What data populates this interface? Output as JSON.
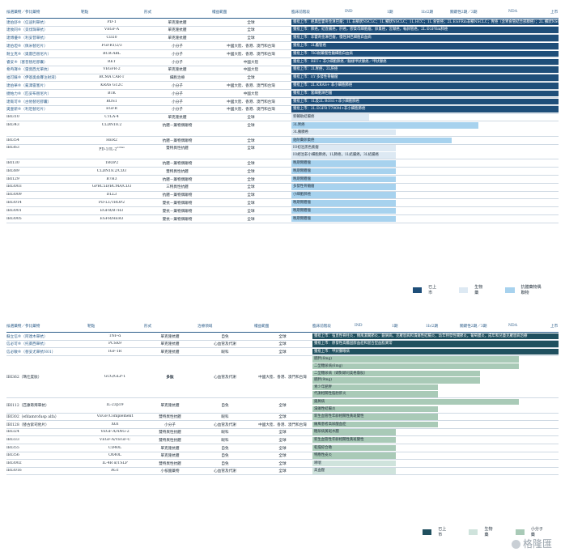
{
  "table1": {
    "headers": [
      "候選藥物／參比藥物",
      "靶點",
      "形式",
      "權益範圍",
      "臨床前階段",
      "IND",
      "1期",
      "1b/2期",
      "關鍵性2期／3期",
      "NDA",
      "上市"
    ],
    "rows": [
      {
        "name": "達伯舒®（信迪利單抗）",
        "target": "PD-1",
        "form": "單克隆抗體",
        "scope": "全球",
        "bar": "dark",
        "label": "獲批上市：經典型霍奇金淋巴瘤；1L 非鱗狀NSCLC；1L 鱗狀NSCLC；1L HCC；1L 食管癌；2L EGFRm非鱗NSCLC；胃癌（含胃食管結合部腺癌）；2L 鱗狀NSCLC",
        "partner": true
      },
      {
        "name": "達攸同®（貝伐珠單抗）",
        "target": "VEGF-A",
        "form": "單克隆抗體",
        "scope": "全球",
        "bar": "dark",
        "label": "獲批上市：肺癌，結直腸癌，肝癌，膠質母細胞瘤，卵巢癌，宮頸癌，輸卵管癌，2L EGFRm肺癌",
        "partner": true
      },
      {
        "name": "達博優®（利妥昔單抗）",
        "target": "CD20",
        "form": "單克隆抗體",
        "scope": "全球",
        "bar": "dark",
        "label": "獲批上市：非霍奇金淋巴瘤，慢性淋巴細胞白血病",
        "partner": true
      },
      {
        "name": "達伯坦®（佩米替尼片）",
        "target": "FGFR1/2/3",
        "form": "小分子",
        "scope": "中國大陸、香港、澳門和台灣",
        "bar": "dark",
        "label": "獲批上市：2L膽管癌",
        "partner": true
      },
      {
        "name": "耐立克®（奧雷巴替尼片）",
        "target": "BCR-ABL",
        "form": "小分子",
        "scope": "中國大陸、香港、澳門和台灣",
        "bar": "dark",
        "label": "獲批上市：TKI耐藥慢性髓細胞白血病",
        "partner": true
      },
      {
        "name": "睿妥®（塞普替尼膠囊）",
        "target": "RET",
        "form": "小分子",
        "scope": "中國大陸",
        "bar": "dark",
        "label": "獲批上市：RET+ 非小細胞肺癌／髓樣甲狀腺癌／甲狀腺癌",
        "partner": true
      },
      {
        "name": "希冉擇®（雷莫西尤單抗）",
        "target": "VEGFR-2",
        "form": "單克隆抗體",
        "scope": "中國大陸",
        "bar": "dark",
        "label": "獲批上市：2L胃癌，2L肝癌",
        "partner": true
      },
      {
        "name": "福可蘇®（伊基奧侖賽注射液）",
        "target": "BCMA CAR-T",
        "form": "細胞治療",
        "scope": "全球",
        "bar": "dark",
        "label": "獲批上市：r/r 多發性骨髓瘤",
        "partner": true
      },
      {
        "name": "達伯華®（氟澤雷塞片）",
        "target": "KRAS G12C",
        "form": "小分子",
        "scope": "中國大陸、香港、澳門和台灣",
        "bar": "dark",
        "label": "獲批上市：2L KRAS+ 非小細胞肺癌",
        "partner": true
      },
      {
        "name": "捷帕力®（匹妥布替尼片）",
        "target": "BTK",
        "form": "小分子",
        "scope": "中國大陸",
        "bar": "dark",
        "label": "獲批上市：套細胞淋巴瘤",
        "partner": true
      },
      {
        "name": "達衛可®（古他替尼膠囊）",
        "target": "ROS1",
        "form": "小分子",
        "scope": "中國大陸、香港、澳門和台灣",
        "bar": "dark",
        "label": "獲批上市：1L及2L ROS1+非小細胞肺癌",
        "partner": true
      },
      {
        "name": "奧壹新®（利厄替尼片）",
        "target": "EGFR",
        "form": "小分子",
        "scope": "中國大陸、香港、澳門和台灣",
        "bar": "dark",
        "label": "獲批上市：2L EGFR T790M+非小細胞肺癌",
        "partner": true
      },
      {
        "name": "IBI310",
        "target": "CTLA-4",
        "form": "單克隆抗體",
        "scope": "全球",
        "bar": "light",
        "label": "新輔助結腸癌",
        "width": 0.29
      },
      {
        "name": "IBI343",
        "target": "CLDN18.2",
        "form": "抗體－藥物偶聯物",
        "scope": "全球",
        "bar2": [
          {
            "cls": "mid",
            "label": "3L胃癌",
            "width": 0.7
          },
          {
            "cls": "light",
            "label": "3L胰腺癌",
            "width": 0.39
          }
        ]
      },
      {
        "name": "IBI354",
        "target": "HER2",
        "form": "抗體－藥物偶聯物",
        "scope": "全球",
        "bar": "mid",
        "label": "鉑耐藥卵巢癌",
        "width": 0.6
      },
      {
        "name": "IBI363",
        "target": "PD-1/IL-2",
        "targetSup": "α-bias",
        "form": "雙特異性抗體",
        "scope": "全球",
        "bar3": [
          {
            "cls": "light",
            "label": "IO初治黑色素瘤",
            "width": 0.39
          },
          {
            "cls": "light",
            "label": "IO經治非小細胞肺癌，1L肺癌，1L結腸癌，3L結腸癌",
            "width": 0.39
          }
        ]
      },
      {
        "name": "IBI130",
        "target": "TROP2",
        "form": "抗體－藥物偶聯物",
        "scope": "全球",
        "bar": "mid",
        "label": "晚期實體瘤",
        "width": 0.39
      },
      {
        "name": "IBI389",
        "target": "CLDN18.2/CD3",
        "form": "雙特異性抗體",
        "scope": "全球",
        "bar": "mid",
        "label": "晚期實體瘤",
        "width": 0.39
      },
      {
        "name": "IBI129",
        "target": "B7H3",
        "form": "抗體－藥物偶聯物",
        "scope": "全球",
        "bar": "mid",
        "label": "晚期實體瘤",
        "width": 0.39
      },
      {
        "name": "IBI3003",
        "target": "GPRC5D/BCMA/CD3",
        "form": "三特異性抗體",
        "scope": "全球",
        "bar": "mid",
        "label": "多發性骨髓瘤",
        "width": 0.39
      },
      {
        "name": "IBI3009",
        "target": "DLL3",
        "form": "抗體－藥物偶聯物",
        "scope": "全球",
        "bar": "mid",
        "label": "小細胞肺癌",
        "width": 0.39
      },
      {
        "name": "IBI3014",
        "target": "PD-L1/TROP2",
        "form": "雙抗－藥物偶聯物",
        "scope": "全球",
        "bar": "mid",
        "label": "晚期實體瘤",
        "width": 0.39
      },
      {
        "name": "IBI3001",
        "target": "EGFR/B7H3",
        "form": "雙抗－藥物偶聯物",
        "scope": "全球",
        "bar": "mid",
        "label": "晚期實體瘤",
        "width": 0.39
      },
      {
        "name": "IBI3005",
        "target": "EGFR/HER3",
        "form": "雙抗－藥物偶聯物",
        "scope": "全球",
        "bar": "mid",
        "label": "晚期實體瘤",
        "width": 0.39
      }
    ],
    "legend": [
      {
        "label": "已上市",
        "color": "#1e4e79"
      },
      {
        "label": "生物藥",
        "color": "#dde9f3"
      },
      {
        "label": "抗體藥物偶聯物",
        "color": "#a7d2ee"
      }
    ]
  },
  "table2": {
    "headers": [
      "候選藥物／參比藥物",
      "靶點",
      "形式",
      "治療領域",
      "權益範圍",
      "臨床前階段",
      "IND",
      "1期",
      "1b/2期",
      "關鍵性2期／3期",
      "NDA",
      "上市"
    ],
    "rows": [
      {
        "name": "蘇立信®（阿達木單抗）",
        "target": "TNF-α",
        "form": "單克隆抗體",
        "area": "自免",
        "scope": "全球",
        "bar": "teal",
        "label": "獲批上市：強直性脊柱炎，類風濕關節炎，銀屑病，克羅恩病和潰瘍性結腸炎，幼年特發性關節炎，葡萄膜炎，成年和兒童克羅恩病治療",
        "partner": true
      },
      {
        "name": "信必可®（托萊西單抗）",
        "target": "PCSK9",
        "form": "單克隆抗體",
        "area": "心血管及代謝",
        "scope": "全球",
        "bar": "teal",
        "label": "獲批上市：原發性高膽固醇血症和混合型血脂異常",
        "partner": true
      },
      {
        "name": "信必敏®（替妥尤單抗N01）",
        "target": "IGF-1R",
        "form": "單克隆抗體",
        "area": "眼科",
        "scope": "全球",
        "bar": "teal",
        "label": "獲批上市：甲狀腺眼病",
        "partner": true
      },
      {
        "name": "IBI362（瑪仕度肽）",
        "target": "GCG/GLP-1",
        "form": "多肽",
        "area": "心血管及代謝",
        "scope": "中國大陸、香港、澳門和台灣",
        "multi": [
          {
            "cls": "sage",
            "label": "肥胖(6mg)",
            "width": 0.84
          },
          {
            "cls": "sage",
            "label": "二型糖尿病(6mg)",
            "width": 0.84
          },
          {
            "cls": "sage",
            "label": "二型糖尿病（頭對頭司美格魯肽）",
            "width": 0.68
          },
          {
            "cls": "sage",
            "label": "肥胖(9mg)",
            "width": 0.68
          },
          {
            "cls": "sage",
            "label": "青少年肥胖",
            "width": 0.51
          },
          {
            "cls": "sage",
            "label": "代謝相關性脂肪肝炎",
            "width": 0.51
          }
        ]
      },
      {
        "name": "IBI112（匹康奇拜單抗）",
        "target": "IL-23p19",
        "form": "單克隆抗體",
        "area": "自免",
        "scope": "全球",
        "multi": [
          {
            "cls": "sage",
            "label": "銀屑病",
            "width": 0.84
          },
          {
            "cls": "sage",
            "label": "潰瘍性結腸炎",
            "width": 0.51
          }
        ]
      },
      {
        "name": "IBI302（efdamrofusp alfa）",
        "target": "VEGF/Complement",
        "form": "雙特異性抗體",
        "area": "眼科",
        "scope": "全球",
        "bar": "sage",
        "label": "新生血管性年齡相關性黃斑變性",
        "width": 0.51
      },
      {
        "name": "IBI128（替古索司他片）",
        "target": "XOI",
        "form": "小分子",
        "area": "心血管及代謝",
        "scope": "中國大陸、香港、澳門和台灣",
        "bar": "sage",
        "label": "痛風患者高尿酸血症",
        "width": 0.51
      },
      {
        "name": "IBI324",
        "target": "VEGF-A/ANG-2",
        "form": "雙特異性抗體",
        "area": "眼科",
        "scope": "全球",
        "bar": "sage",
        "label": "糖尿病黃斑水腫",
        "width": 0.34
      },
      {
        "name": "IBI333",
        "target": "VEGF-A/VEGF-C",
        "form": "雙特異性抗體",
        "area": "眼科",
        "scope": "全球",
        "bar": "sage",
        "label": "新生血管性年齡相關性黃斑變性",
        "width": 0.34
      },
      {
        "name": "IBI355",
        "target": "CD40L",
        "form": "單克隆抗體",
        "area": "自免",
        "scope": "全球",
        "bar": "sage",
        "label": "乾燥綜合徵",
        "width": 0.34
      },
      {
        "name": "IBI356",
        "target": "OX40L",
        "form": "單克隆抗體",
        "area": "自免",
        "scope": "全球",
        "bar": "sage",
        "label": "特應性皮炎",
        "width": 0.34
      },
      {
        "name": "IBI3002",
        "target": "IL-4R α/TSLP",
        "form": "雙特異性抗體",
        "area": "自免",
        "scope": "全球",
        "bar": "pale",
        "label": "哮喘",
        "width": 0.34
      },
      {
        "name": "IBI3016",
        "target": "AGT",
        "form": "小核酸藥物",
        "area": "心血管及代謝",
        "scope": "全球",
        "bar": "pale",
        "label": "高血壓",
        "width": 0.34
      }
    ],
    "legend": [
      {
        "label": "已上市",
        "color": "#20505f"
      },
      {
        "label": "生物藥",
        "color": "#cfe3dc"
      },
      {
        "label": "小分子藥",
        "color": "#a9cab7"
      }
    ]
  },
  "watermark": "格隆匯"
}
